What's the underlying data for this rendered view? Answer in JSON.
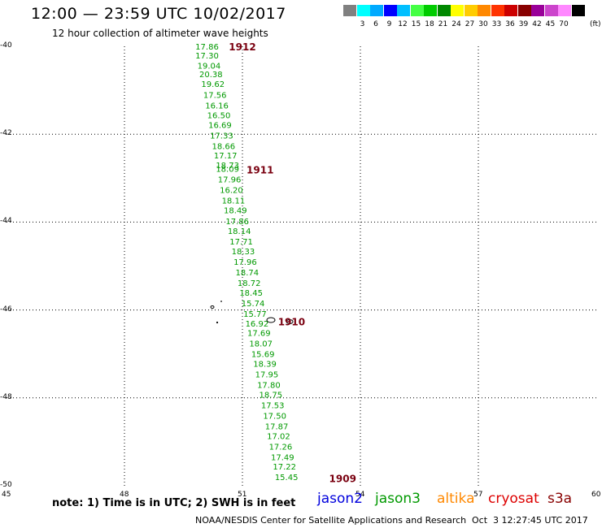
{
  "header": {
    "title": "12:00 — 23:59 UTC 10/02/2017",
    "subtitle": "12 hour collection of altimeter wave heights"
  },
  "legend": {
    "colors": [
      "#808080",
      "#00ffff",
      "#00aaff",
      "#0000ff",
      "#00bfff",
      "#44ff44",
      "#00cc00",
      "#008800",
      "#ffff00",
      "#ffcc00",
      "#ff8800",
      "#ff3300",
      "#cc0000",
      "#880000",
      "#990099",
      "#cc44cc",
      "#ff88ff",
      "#000000"
    ],
    "labels": [
      "3",
      "6",
      "9",
      "12",
      "15",
      "18",
      "21",
      "24",
      "27",
      "30",
      "33",
      "36",
      "39",
      "42",
      "45",
      "70"
    ],
    "unit": "(ft)"
  },
  "map": {
    "lon_ticks": [
      "45",
      "48",
      "51",
      "54",
      "57",
      "60"
    ],
    "lat_ticks": [
      "-40",
      "-42",
      "-44",
      "-46",
      "-48",
      "-50"
    ],
    "lon_range": [
      45,
      60
    ],
    "lat_range": [
      -40,
      -50
    ],
    "track_color": "#009900",
    "time_color": "#7a0010",
    "track": [
      {
        "value": "17.86",
        "lat": -40.0,
        "lon": 50.1
      },
      {
        "value": "17.30",
        "lat": -40.2,
        "lon": 50.1
      },
      {
        "value": "19.04",
        "lat": -40.43,
        "lon": 50.15
      },
      {
        "value": "20.38",
        "lat": -40.63,
        "lon": 50.2
      },
      {
        "value": "19.62",
        "lat": -40.85,
        "lon": 50.25
      },
      {
        "value": "17.56",
        "lat": -41.1,
        "lon": 50.3
      },
      {
        "value": "16.16",
        "lat": -41.34,
        "lon": 50.35
      },
      {
        "value": "16.50",
        "lat": -41.56,
        "lon": 50.4
      },
      {
        "value": "16.69",
        "lat": -41.78,
        "lon": 50.43
      },
      {
        "value": "17.33",
        "lat": -42.02,
        "lon": 50.47
      },
      {
        "value": "18.66",
        "lat": -42.26,
        "lon": 50.52
      },
      {
        "value": "17.17",
        "lat": -42.48,
        "lon": 50.57
      },
      {
        "value": "18.73",
        "lat": -42.7,
        "lon": 50.62
      },
      {
        "value": "18.09",
        "lat": -42.78,
        "lon": 50.62
      },
      {
        "value": "17.96",
        "lat": -43.02,
        "lon": 50.67
      },
      {
        "value": "16.20",
        "lat": -43.26,
        "lon": 50.72
      },
      {
        "value": "18.11",
        "lat": -43.5,
        "lon": 50.77
      },
      {
        "value": "18.49",
        "lat": -43.72,
        "lon": 50.82
      },
      {
        "value": "17.86",
        "lat": -43.97,
        "lon": 50.87
      },
      {
        "value": "18.14",
        "lat": -44.2,
        "lon": 50.92
      },
      {
        "value": "17.71",
        "lat": -44.44,
        "lon": 50.97
      },
      {
        "value": "18.33",
        "lat": -44.66,
        "lon": 51.02
      },
      {
        "value": "17.96",
        "lat": -44.9,
        "lon": 51.07
      },
      {
        "value": "18.74",
        "lat": -45.14,
        "lon": 51.12
      },
      {
        "value": "18.72",
        "lat": -45.38,
        "lon": 51.17
      },
      {
        "value": "18.45",
        "lat": -45.6,
        "lon": 51.22
      },
      {
        "value": "15.74",
        "lat": -45.84,
        "lon": 51.27
      },
      {
        "value": "15.77",
        "lat": -46.08,
        "lon": 51.32
      },
      {
        "value": "16.92",
        "lat": -46.3,
        "lon": 51.37
      },
      {
        "value": "17.69",
        "lat": -46.52,
        "lon": 51.42
      },
      {
        "value": "18.07",
        "lat": -46.76,
        "lon": 51.47
      },
      {
        "value": "15.69",
        "lat": -47.0,
        "lon": 51.52
      },
      {
        "value": "18.39",
        "lat": -47.22,
        "lon": 51.57
      },
      {
        "value": "17.95",
        "lat": -47.46,
        "lon": 51.62
      },
      {
        "value": "17.80",
        "lat": -47.7,
        "lon": 51.67
      },
      {
        "value": "18.75",
        "lat": -47.92,
        "lon": 51.72
      },
      {
        "value": "17.53",
        "lat": -48.16,
        "lon": 51.77
      },
      {
        "value": "17.50",
        "lat": -48.4,
        "lon": 51.82
      },
      {
        "value": "17.87",
        "lat": -48.64,
        "lon": 51.87
      },
      {
        "value": "17.02",
        "lat": -48.86,
        "lon": 51.92
      },
      {
        "value": "17.26",
        "lat": -49.1,
        "lon": 51.97
      },
      {
        "value": "17.49",
        "lat": -49.34,
        "lon": 52.02
      },
      {
        "value": "17.22",
        "lat": -49.56,
        "lon": 52.07
      },
      {
        "value": "15.45",
        "lat": -49.8,
        "lon": 52.12
      }
    ],
    "time_labels": [
      {
        "value": "1912",
        "lat": -40.0,
        "lon": 51.0
      },
      {
        "value": "1911",
        "lat": -42.8,
        "lon": 51.45
      },
      {
        "value": "1910",
        "lat": -46.26,
        "lon": 52.25
      },
      {
        "value": "1909",
        "lat": -49.82,
        "lon": 53.55
      }
    ]
  },
  "footer": {
    "note": "note: 1) Time is in UTC; 2) SWH is in feet",
    "satellites": [
      {
        "name": "jason2",
        "color": "#0000dd"
      },
      {
        "name": "jason3",
        "color": "#009900"
      },
      {
        "name": "altika",
        "color": "#ff8800"
      },
      {
        "name": "cryosat",
        "color": "#dd0000"
      },
      {
        "name": "s3a",
        "color": "#880000"
      }
    ],
    "credit": "NOAA/NESDIS Center for Satellite Applications and Research",
    "timestamp": "Oct  3 12:27:45 UTC 2017"
  }
}
